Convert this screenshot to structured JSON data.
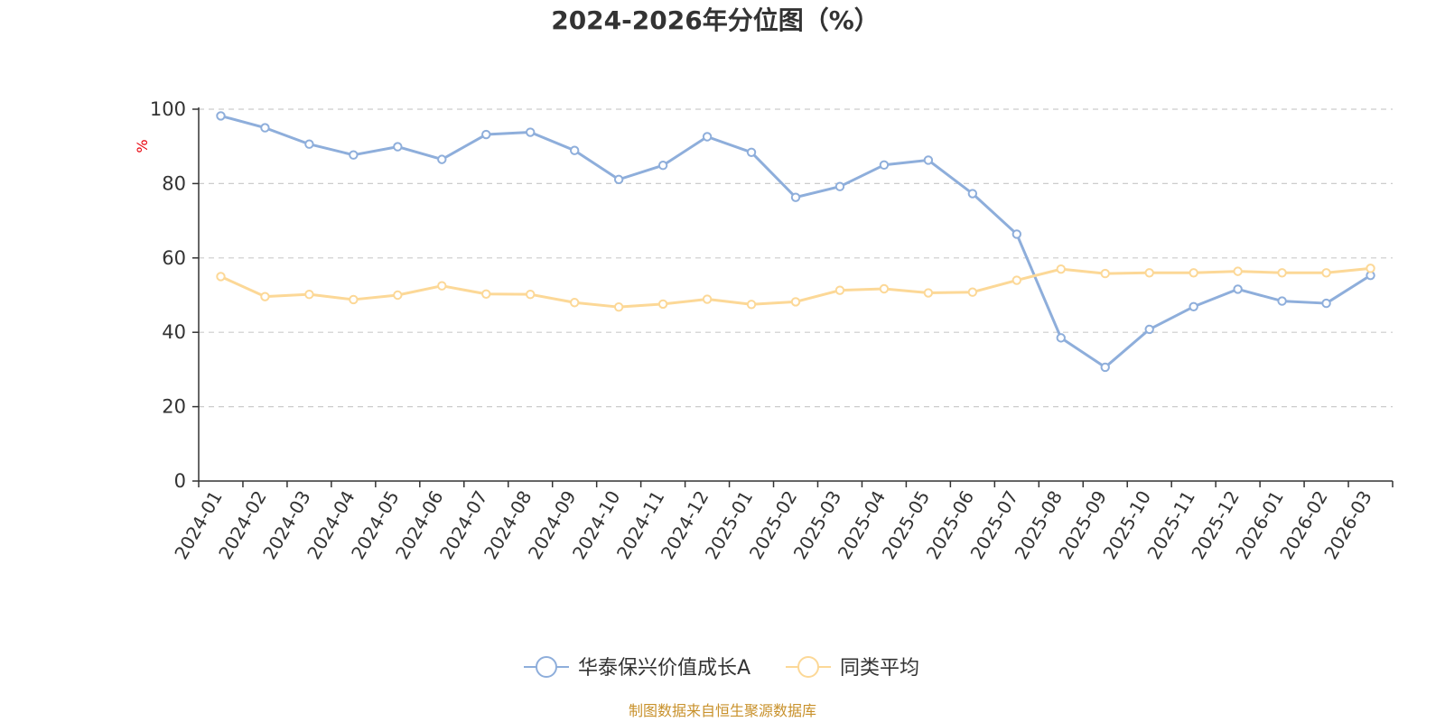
{
  "chart_data": {
    "type": "line",
    "title": "2024-2026年分位图（%）",
    "ylabel": "%",
    "ylim": [
      0,
      100
    ],
    "yticks": [
      0,
      20,
      40,
      60,
      80,
      100
    ],
    "grid": true,
    "legend_position": "bottom",
    "categories": [
      "2024-01",
      "2024-02",
      "2024-03",
      "2024-04",
      "2024-05",
      "2024-06",
      "2024-07",
      "2024-08",
      "2024-09",
      "2024-10",
      "2024-11",
      "2024-12",
      "2025-01",
      "2025-02",
      "2025-03",
      "2025-04",
      "2025-05",
      "2025-06",
      "2025-07",
      "2025-08",
      "2025-09",
      "2025-10",
      "2025-11",
      "2025-12",
      "2026-01",
      "2026-02",
      "2026-03"
    ],
    "series": [
      {
        "name": "华泰保兴价值成长A",
        "color": "#8eaedb",
        "values": [
          98.2,
          95.0,
          90.6,
          87.7,
          89.9,
          86.5,
          93.2,
          93.8,
          88.9,
          81.1,
          84.9,
          92.6,
          88.4,
          76.3,
          79.2,
          85.0,
          86.3,
          77.3,
          66.4,
          38.5,
          30.6,
          40.8,
          46.9,
          51.6,
          48.4,
          47.8,
          55.3
        ]
      },
      {
        "name": "同类平均",
        "color": "#fcd897",
        "values": [
          55.0,
          49.6,
          50.2,
          48.8,
          50.0,
          52.5,
          50.3,
          50.2,
          48.0,
          46.8,
          47.6,
          48.9,
          47.5,
          48.2,
          51.3,
          51.7,
          50.6,
          50.8,
          54.0,
          57.0,
          55.8,
          56.0,
          56.0,
          56.4,
          56.0,
          56.0,
          57.2
        ]
      }
    ]
  },
  "source": "制图数据来自恒生聚源数据库"
}
